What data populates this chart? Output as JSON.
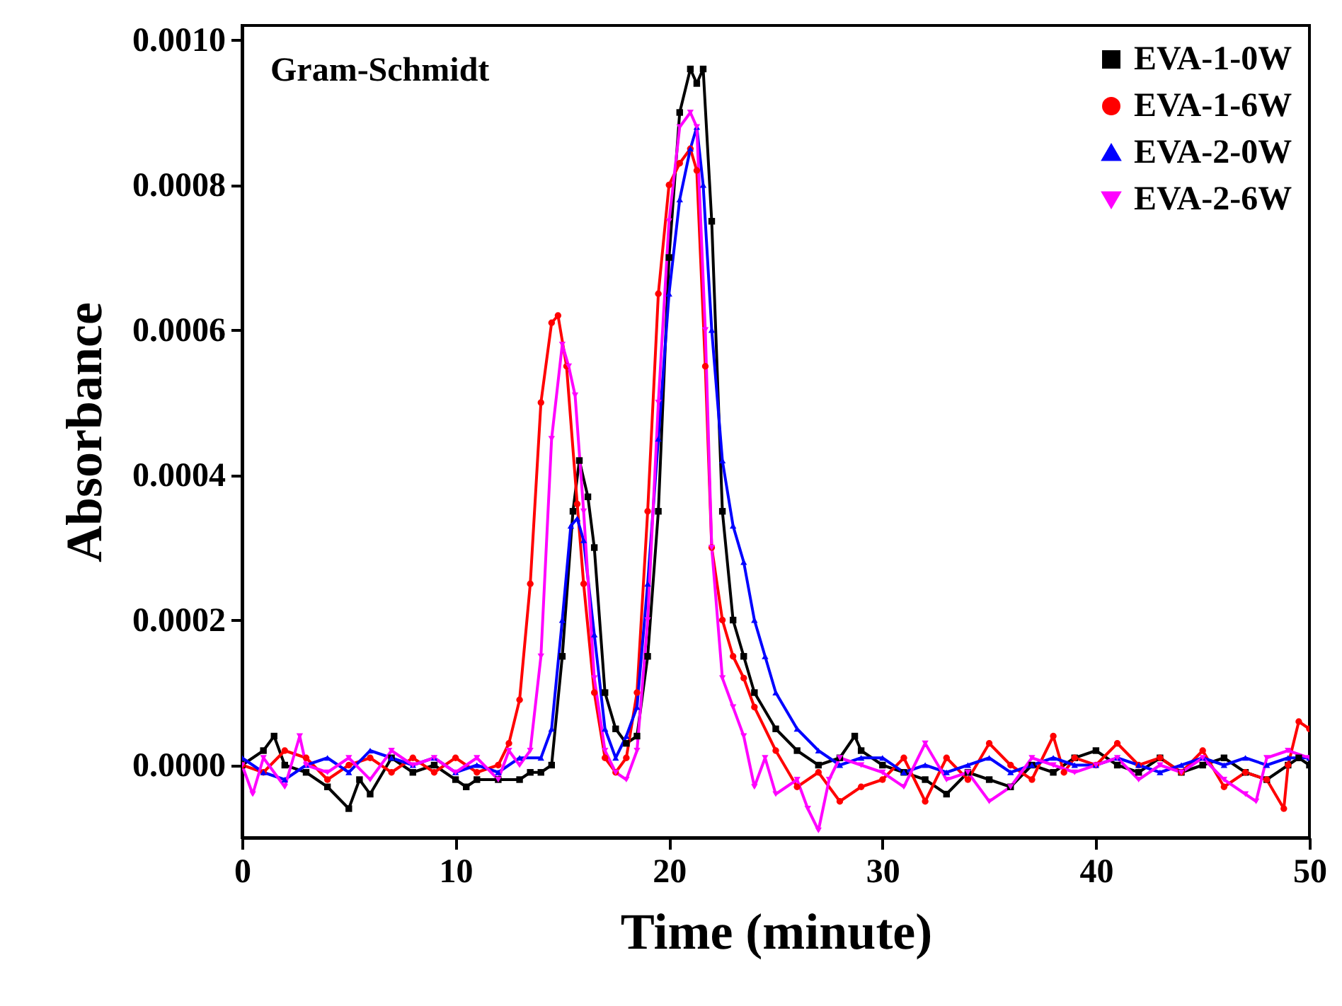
{
  "chart_data": {
    "type": "line",
    "xlabel": "Time (minute)",
    "ylabel": "Absorbance",
    "annotations": [
      "Gram-Schmidt"
    ],
    "xlim": [
      0,
      50
    ],
    "xticks": [
      0,
      10,
      20,
      30,
      40,
      50
    ],
    "ylim": [
      -0.0001,
      0.00102
    ],
    "yticks": [
      {
        "value": 0,
        "label": "0.0000"
      },
      {
        "value": 0.0002,
        "label": "0.0002"
      },
      {
        "value": 0.0004,
        "label": "0.0004"
      },
      {
        "value": 0.0006,
        "label": "0.0006"
      },
      {
        "value": 0.0008,
        "label": "0.0008"
      },
      {
        "value": 0.001,
        "label": "0.0010"
      }
    ],
    "grid": false,
    "legend": "top right",
    "line_style": "solid",
    "series": [
      {
        "name": "EVA-1-0W",
        "color": "#000000",
        "marker": "square",
        "x": [
          0,
          1,
          1.5,
          2,
          3,
          4,
          5,
          5.5,
          6,
          7,
          8,
          9,
          10,
          10.5,
          11,
          12,
          13,
          13.5,
          14,
          14.5,
          15,
          15.5,
          15.8,
          16.2,
          16.5,
          17,
          17.5,
          18,
          18.5,
          19,
          19.5,
          20,
          20.5,
          21,
          21.3,
          21.6,
          22,
          22.5,
          23,
          23.5,
          24,
          25,
          26,
          27,
          28,
          28.7,
          29,
          30,
          31,
          32,
          33,
          34,
          35,
          36,
          37,
          38,
          39,
          40,
          41,
          42,
          43,
          44,
          45,
          46,
          47,
          48,
          49,
          49.5,
          50
        ],
        "values": [
          0,
          2e-05,
          4e-05,
          0,
          -1e-05,
          -3e-05,
          -6e-05,
          -2e-05,
          -4e-05,
          1e-05,
          -1e-05,
          0,
          -2e-05,
          -3e-05,
          -2e-05,
          -2e-05,
          -2e-05,
          -1e-05,
          -1e-05,
          0,
          0.00015,
          0.00035,
          0.00042,
          0.00037,
          0.0003,
          0.0001,
          5e-05,
          3e-05,
          4e-05,
          0.00015,
          0.00035,
          0.0007,
          0.0009,
          0.00096,
          0.00094,
          0.00096,
          0.00075,
          0.00035,
          0.0002,
          0.00015,
          0.0001,
          5e-05,
          2e-05,
          0,
          1e-05,
          4e-05,
          2e-05,
          0,
          -1e-05,
          -2e-05,
          -4e-05,
          -1e-05,
          -2e-05,
          -3e-05,
          0,
          -1e-05,
          1e-05,
          2e-05,
          0,
          -1e-05,
          1e-05,
          -1e-05,
          0,
          1e-05,
          -1e-05,
          -2e-05,
          0,
          1e-05,
          0
        ]
      },
      {
        "name": "EVA-1-6W",
        "color": "#ff0000",
        "marker": "circle",
        "x": [
          0,
          1,
          2,
          3,
          4,
          5,
          6,
          7,
          8,
          9,
          10,
          11,
          12,
          12.5,
          13,
          13.5,
          14,
          14.5,
          14.8,
          15.2,
          15.7,
          16,
          16.5,
          17,
          17.5,
          18,
          18.5,
          19,
          19.5,
          20,
          20.5,
          21,
          21.3,
          21.7,
          22,
          22.5,
          23,
          23.5,
          24,
          25,
          26,
          27,
          28,
          29,
          30,
          31,
          32,
          33,
          34,
          35,
          36,
          37,
          38,
          38.5,
          39,
          40,
          41,
          42,
          43,
          44,
          45,
          46,
          47,
          48,
          48.8,
          49,
          49.5,
          50
        ],
        "values": [
          0,
          -1e-05,
          2e-05,
          1e-05,
          -2e-05,
          0,
          1e-05,
          -1e-05,
          1e-05,
          -1e-05,
          1e-05,
          -1e-05,
          0,
          3e-05,
          9e-05,
          0.00025,
          0.0005,
          0.00061,
          0.00062,
          0.00055,
          0.00036,
          0.00025,
          0.0001,
          1e-05,
          -1e-05,
          1e-05,
          0.0001,
          0.00035,
          0.00065,
          0.0008,
          0.00083,
          0.00085,
          0.00082,
          0.00055,
          0.0003,
          0.0002,
          0.00015,
          0.00012,
          8e-05,
          2e-05,
          -3e-05,
          -1e-05,
          -5e-05,
          -3e-05,
          -2e-05,
          1e-05,
          -5e-05,
          1e-05,
          -2e-05,
          3e-05,
          0,
          -2e-05,
          4e-05,
          -1e-05,
          1e-05,
          0,
          3e-05,
          0,
          1e-05,
          -1e-05,
          2e-05,
          -3e-05,
          -1e-05,
          -2e-05,
          -6e-05,
          0,
          6e-05,
          5e-05
        ]
      },
      {
        "name": "EVA-2-0W",
        "color": "#0000ff",
        "marker": "triangle",
        "x": [
          0,
          1,
          2,
          3,
          4,
          5,
          6,
          7,
          8,
          9,
          10,
          11,
          12,
          13,
          14,
          14.5,
          15,
          15.4,
          15.7,
          16,
          16.5,
          17,
          17.5,
          18,
          18.5,
          19,
          19.5,
          20,
          20.5,
          21,
          21.3,
          21.6,
          22,
          22.5,
          23,
          23.5,
          24,
          24.5,
          25,
          26,
          27,
          28,
          29,
          30,
          31,
          32,
          33,
          34,
          35,
          36,
          37,
          38,
          39,
          40,
          41,
          42,
          43,
          44,
          45,
          46,
          47,
          48,
          49,
          50
        ],
        "values": [
          1e-05,
          -1e-05,
          -2e-05,
          0,
          1e-05,
          -1e-05,
          2e-05,
          1e-05,
          0,
          1e-05,
          -1e-05,
          0,
          -1e-05,
          1e-05,
          1e-05,
          5e-05,
          0.0002,
          0.00033,
          0.00034,
          0.00031,
          0.00018,
          5e-05,
          1e-05,
          4e-05,
          8e-05,
          0.00025,
          0.00045,
          0.00065,
          0.00078,
          0.00085,
          0.00088,
          0.0008,
          0.0006,
          0.00042,
          0.00033,
          0.00028,
          0.0002,
          0.00015,
          0.0001,
          5e-05,
          2e-05,
          0,
          1e-05,
          1e-05,
          -1e-05,
          0,
          -1e-05,
          0,
          1e-05,
          -1e-05,
          0,
          1e-05,
          0,
          0,
          1e-05,
          0,
          -1e-05,
          0,
          1e-05,
          0,
          1e-05,
          0,
          1e-05,
          1e-05
        ]
      },
      {
        "name": "EVA-2-6W",
        "color": "#ff00ff",
        "marker": "triangle-down",
        "x": [
          0,
          0.5,
          1,
          2,
          2.7,
          3,
          4,
          5,
          6,
          7,
          8,
          9,
          10,
          11,
          12,
          12.5,
          13,
          13.5,
          14,
          14.5,
          15,
          15.3,
          15.6,
          16,
          16.5,
          17,
          17.5,
          18,
          18.5,
          19,
          19.5,
          20,
          20.5,
          21,
          21.3,
          21.7,
          22,
          22.5,
          23,
          23.5,
          24,
          24.5,
          25,
          26,
          26.5,
          27,
          27.5,
          28,
          29,
          30,
          31,
          32,
          33,
          34,
          35,
          36,
          37,
          38,
          39,
          40,
          41,
          42,
          43,
          44,
          45,
          46,
          47,
          47.5,
          48,
          49,
          50
        ],
        "values": [
          0,
          -4e-05,
          1e-05,
          -3e-05,
          4e-05,
          0,
          -1e-05,
          1e-05,
          -2e-05,
          2e-05,
          0,
          1e-05,
          -1e-05,
          1e-05,
          -2e-05,
          2e-05,
          0,
          2e-05,
          0.00015,
          0.00045,
          0.00058,
          0.00055,
          0.00051,
          0.00035,
          0.00012,
          2e-05,
          -1e-05,
          -2e-05,
          2e-05,
          0.0002,
          0.0005,
          0.00075,
          0.00088,
          0.0009,
          0.00088,
          0.0006,
          0.0003,
          0.00012,
          8e-05,
          4e-05,
          -3e-05,
          1e-05,
          -4e-05,
          -2e-05,
          -6e-05,
          -9e-05,
          -2e-05,
          1e-05,
          0,
          -1e-05,
          -3e-05,
          3e-05,
          -2e-05,
          -1e-05,
          -5e-05,
          -3e-05,
          1e-05,
          0,
          -1e-05,
          0,
          1e-05,
          -2e-05,
          0,
          -1e-05,
          1e-05,
          -2e-05,
          -4e-05,
          -5e-05,
          1e-05,
          2e-05,
          1e-05
        ]
      }
    ]
  }
}
